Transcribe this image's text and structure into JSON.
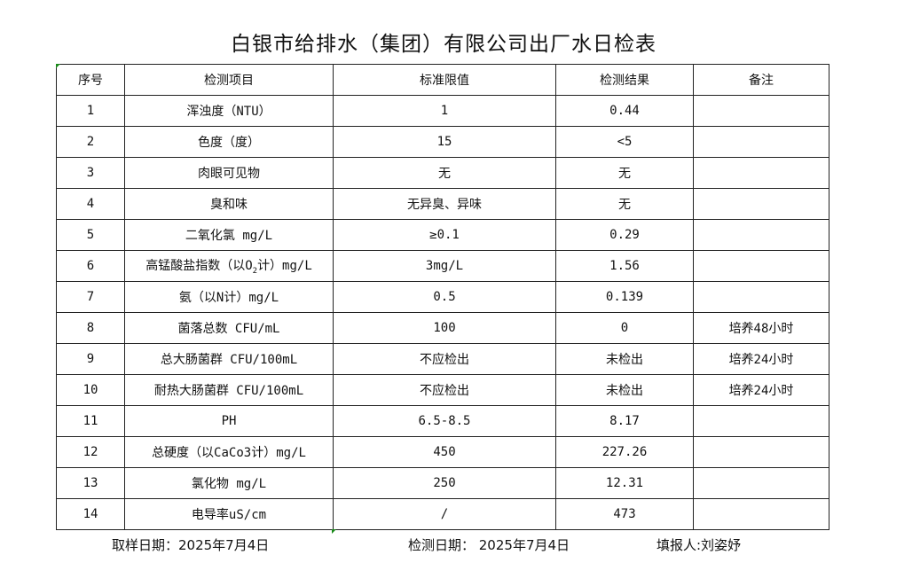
{
  "title": "白银市给排水（集团）有限公司出厂水日检表",
  "headers": [
    "序号",
    "检测项目",
    "标准限值",
    "检测结果",
    "备注"
  ],
  "rows": [
    {
      "no": "1",
      "item": "浑浊度（NTU）",
      "limit": "1",
      "result": "0.44",
      "note": ""
    },
    {
      "no": "2",
      "item": "色度（度）",
      "limit": "15",
      "result": "<5",
      "note": ""
    },
    {
      "no": "3",
      "item": "肉眼可见物",
      "limit": "无",
      "result": "无",
      "note": ""
    },
    {
      "no": "4",
      "item": "臭和味",
      "limit": "无异臭、异味",
      "result": "无",
      "note": ""
    },
    {
      "no": "5",
      "item": "二氧化氯 mg/L",
      "limit": "≥0.1",
      "result": "0.29",
      "note": ""
    },
    {
      "no": "6",
      "item": "高锰酸盐指数（以O",
      "item_sub": "2",
      "item_post": "计）mg/L",
      "limit": "3mg/L",
      "result": "1.56",
      "note": ""
    },
    {
      "no": "7",
      "item": "氨（以N计）mg/L",
      "limit": "0.5",
      "result": "0.139",
      "note": ""
    },
    {
      "no": "8",
      "item": "菌落总数 CFU/mL",
      "limit": "100",
      "result": "0",
      "note": "培养48小时"
    },
    {
      "no": "9",
      "item": "总大肠菌群 CFU/100mL",
      "limit": "不应检出",
      "result": "未检出",
      "note": "培养24小时"
    },
    {
      "no": "10",
      "item": "耐热大肠菌群 CFU/100mL",
      "limit": "不应检出",
      "result": "未检出",
      "note": "培养24小时"
    },
    {
      "no": "11",
      "item": "PH",
      "limit": "6.5-8.5",
      "result": "8.17",
      "note": ""
    },
    {
      "no": "12",
      "item": "总硬度（以CaCo3计）mg/L",
      "limit": "450",
      "result": "227.26",
      "note": ""
    },
    {
      "no": "13",
      "item": "氯化物 mg/L",
      "limit": "250",
      "result": "12.31",
      "note": ""
    },
    {
      "no": "14",
      "item": "电导率uS/cm",
      "limit": "/",
      "result": "473",
      "note": ""
    }
  ],
  "footer": {
    "sample_date": "取样日期：2025年7月4日",
    "test_date": "检测日期： 2025年7月4日",
    "filled_by": "填报人:刘姿妤"
  }
}
